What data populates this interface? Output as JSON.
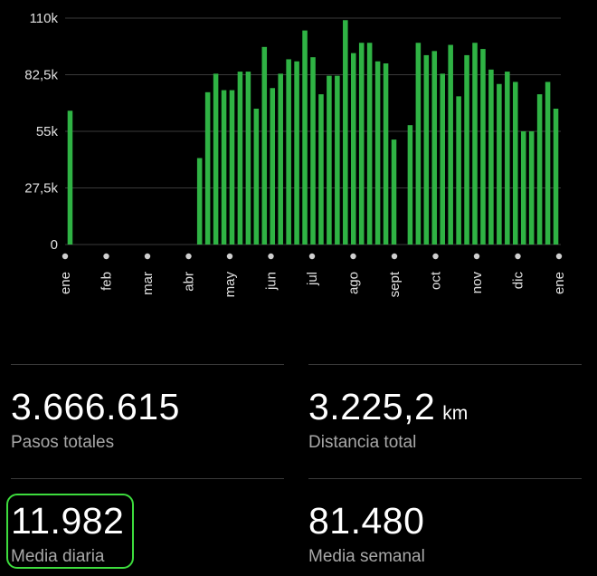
{
  "chart_data": {
    "type": "bar",
    "y_ticks": [
      "110k",
      "82,5k",
      "55k",
      "27,5k",
      "0"
    ],
    "ylim": [
      0,
      110000
    ],
    "month_labels": [
      "ene",
      "feb",
      "mar",
      "abr",
      "may",
      "jun",
      "jul",
      "ago",
      "sept",
      "oct",
      "nov",
      "dic",
      "ene"
    ],
    "bar_color": "#2fb344",
    "grid_color": "#3a3a3a",
    "values": [
      65000,
      0,
      0,
      0,
      0,
      0,
      0,
      0,
      0,
      0,
      0,
      0,
      0,
      0,
      0,
      0,
      42000,
      74000,
      83000,
      75000,
      75000,
      84000,
      84000,
      66000,
      96000,
      76000,
      83000,
      90000,
      89000,
      104000,
      91000,
      73000,
      82000,
      82000,
      109000,
      93000,
      98000,
      98000,
      89000,
      88000,
      51000,
      0,
      58000,
      98000,
      92000,
      94000,
      83000,
      97000,
      72000,
      92000,
      98000,
      95000,
      85000,
      78000,
      84000,
      79000,
      55000,
      55000,
      73000,
      79000,
      66000
    ]
  },
  "stats": [
    {
      "value": "3.666.615",
      "unit": "",
      "label": "Pasos totales"
    },
    {
      "value": "3.225,2",
      "unit": "km",
      "label": "Distancia total"
    },
    {
      "value": "11.982",
      "unit": "",
      "label": "Media diaria"
    },
    {
      "value": "81.480",
      "unit": "",
      "label": "Media semanal"
    }
  ],
  "colors": {
    "background": "#000000",
    "highlight": "#3ddc3d",
    "label": "#a8a8a8"
  }
}
